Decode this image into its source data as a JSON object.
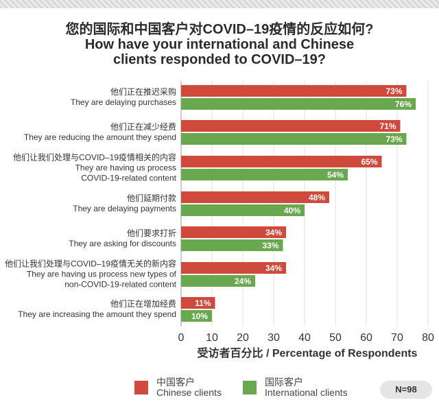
{
  "title": {
    "zh": "您的国际和中国客户对COVID–19疫情的反应如何?",
    "en_line1": "How have your international and Chinese",
    "en_line2": "clients responded to COVID–19?"
  },
  "chart_data": {
    "type": "bar",
    "orientation": "horizontal",
    "categories": [
      {
        "zh": "他们正在推迟采购",
        "en": [
          "They are delaying purchases"
        ]
      },
      {
        "zh": "他们正在减少经费",
        "en": [
          "They are reducing the amount they spend"
        ]
      },
      {
        "zh": "他们让我们处理与COVID–19疫情相关的内容",
        "en": [
          "They are having us process",
          "COVID-19-related content"
        ]
      },
      {
        "zh": "他们延期付款",
        "en": [
          "They are delaying payments"
        ]
      },
      {
        "zh": "他们要求打折",
        "en": [
          "They are asking for discounts"
        ]
      },
      {
        "zh": "他们让我们处理与COVID–19疫情无关的新内容",
        "en": [
          "They are having us process new types of",
          "non-COVID-19-related content"
        ]
      },
      {
        "zh": "他们正在增加经费",
        "en": [
          "They are increasing the amount they spend"
        ]
      }
    ],
    "series": [
      {
        "name": "中国客户 Chinese clients",
        "color": "#cf4a3c",
        "values": [
          73,
          71,
          65,
          48,
          34,
          34,
          11
        ]
      },
      {
        "name": "国际客户 International clients",
        "color": "#6aa84f",
        "values": [
          76,
          73,
          54,
          40,
          33,
          24,
          10
        ]
      }
    ],
    "value_suffix": "%",
    "xlim": [
      0,
      80
    ],
    "xticks": [
      0,
      10,
      20,
      30,
      40,
      50,
      60,
      70,
      80
    ],
    "xlabel": "受访者百分比 / Percentage of Respondents",
    "grid": true,
    "legend": "bottom"
  },
  "legend": {
    "chinese_zh": "中国客户",
    "chinese_en": "Chinese clients",
    "intl_zh": "国际客户",
    "intl_en": "International clients"
  },
  "sample": "N=98"
}
